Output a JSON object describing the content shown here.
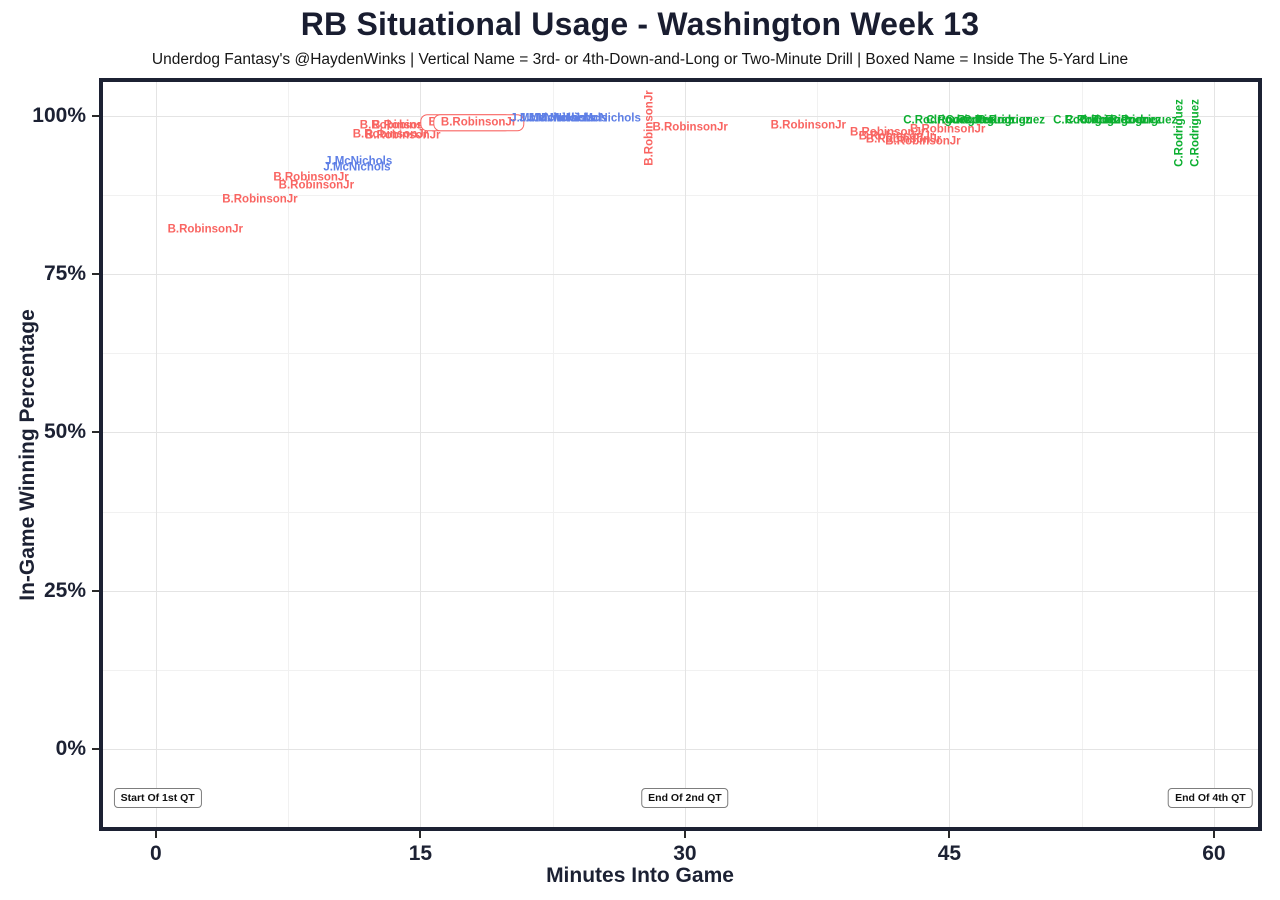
{
  "chart_data": {
    "type": "scatter",
    "title": "RB Situational Usage - Washington Week 13",
    "subtitle": "Underdog Fantasy's @HaydenWinks | Vertical Name = 3rd- or 4th-Down-and-Long or Two-Minute Drill | Boxed Name = Inside The 5-Yard Line",
    "xlabel": "Minutes Into Game",
    "ylabel": "In-Game Winning Percentage",
    "xlim": [
      -3.0,
      62.5
    ],
    "ylim": [
      -12.3,
      105.3
    ],
    "grid": "on",
    "legend_position": "none",
    "x_ticks": [
      {
        "value": 0,
        "label": "0"
      },
      {
        "value": 15,
        "label": "15"
      },
      {
        "value": 30,
        "label": "30"
      },
      {
        "value": 45,
        "label": "45"
      },
      {
        "value": 60,
        "label": "60"
      }
    ],
    "y_ticks": [
      {
        "value": 0,
        "label": "0%"
      },
      {
        "value": 25,
        "label": "25%"
      },
      {
        "value": 50,
        "label": "50%"
      },
      {
        "value": 75,
        "label": "75%"
      },
      {
        "value": 100,
        "label": "100%"
      }
    ],
    "x_minor": [
      7.5,
      22.5,
      37.5,
      52.5
    ],
    "y_minor": [
      12.5,
      37.5,
      62.5,
      87.5
    ],
    "colors": {
      "red": "#f96562",
      "blue": "#5e7fe6",
      "green": "#0caf30",
      "ink": "#1c2133",
      "grid_major": "#e4e4e4",
      "grid_minor": "#f1f1f1"
    },
    "points": [
      {
        "label": "B.RobinsonJr",
        "x": 2.8,
        "y": 82.0,
        "color": "red",
        "style": "plain"
      },
      {
        "label": "B.RobinsonJr",
        "x": 5.9,
        "y": 86.6,
        "color": "red",
        "style": "plain"
      },
      {
        "label": "B.RobinsonJr",
        "x": 8.8,
        "y": 90.2,
        "color": "red",
        "style": "plain"
      },
      {
        "label": "B.RobinsonJr",
        "x": 9.1,
        "y": 88.9,
        "color": "red",
        "style": "plain"
      },
      {
        "label": "B.RobinsonJr",
        "x": 13.3,
        "y": 96.9,
        "color": "red",
        "style": "plain"
      },
      {
        "label": "B.RobinsonJr",
        "x": 14.0,
        "y": 96.7,
        "color": "red",
        "style": "plain"
      },
      {
        "label": "B.RobinsonJr",
        "x": 13.7,
        "y": 98.4,
        "color": "red",
        "style": "plain"
      },
      {
        "label": "B.RobinsonJr",
        "x": 14.4,
        "y": 98.3,
        "color": "red",
        "style": "plain"
      },
      {
        "label": "B.RobinsonJr",
        "x": 17.6,
        "y": 98.9,
        "color": "red",
        "style": "boxed"
      },
      {
        "label": "B.RobinsonJr",
        "x": 18.3,
        "y": 98.9,
        "color": "red",
        "style": "boxed"
      },
      {
        "label": "J.McNichols",
        "x": 11.5,
        "y": 92.7,
        "color": "blue",
        "style": "plain"
      },
      {
        "label": "J.McNichols",
        "x": 11.4,
        "y": 91.7,
        "color": "blue",
        "style": "plain"
      },
      {
        "label": "J.McNichols",
        "x": 22.0,
        "y": 99.5,
        "color": "blue",
        "style": "plain"
      },
      {
        "label": "J.McNichols",
        "x": 22.5,
        "y": 99.5,
        "color": "blue",
        "style": "plain"
      },
      {
        "label": "J.McNichols",
        "x": 23.0,
        "y": 99.4,
        "color": "blue",
        "style": "plain"
      },
      {
        "label": "J.McNichols",
        "x": 23.7,
        "y": 99.5,
        "color": "blue",
        "style": "plain"
      },
      {
        "label": "J.McNichols",
        "x": 25.6,
        "y": 99.5,
        "color": "blue",
        "style": "plain"
      },
      {
        "label": "B.RobinsonJr",
        "x": 28.0,
        "y": 98.0,
        "color": "red",
        "style": "vertical"
      },
      {
        "label": "B.RobinsonJr",
        "x": 30.3,
        "y": 98.0,
        "color": "red",
        "style": "plain"
      },
      {
        "label": "B.RobinsonJr",
        "x": 37.0,
        "y": 98.3,
        "color": "red",
        "style": "plain"
      },
      {
        "label": "B.RobinsonJr",
        "x": 41.5,
        "y": 97.2,
        "color": "red",
        "style": "plain"
      },
      {
        "label": "B.RobinsonJr",
        "x": 42.0,
        "y": 96.6,
        "color": "red",
        "style": "plain"
      },
      {
        "label": "B.RobinsonJr",
        "x": 42.4,
        "y": 96.1,
        "color": "red",
        "style": "plain"
      },
      {
        "label": "B.RobinsonJr",
        "x": 43.5,
        "y": 95.8,
        "color": "red",
        "style": "plain"
      },
      {
        "label": "B.RobinsonJr",
        "x": 44.9,
        "y": 97.7,
        "color": "red",
        "style": "plain"
      },
      {
        "label": "C.Rodriguez",
        "x": 44.3,
        "y": 99.1,
        "color": "green",
        "style": "plain"
      },
      {
        "label": "C.Rodriguez",
        "x": 45.6,
        "y": 99.2,
        "color": "green",
        "style": "plain"
      },
      {
        "label": "C.Rodriguez",
        "x": 46.7,
        "y": 99.1,
        "color": "green",
        "style": "plain"
      },
      {
        "label": "C.Rodriguez",
        "x": 47.7,
        "y": 99.2,
        "color": "green",
        "style": "plain"
      },
      {
        "label": "C.Rodriguez",
        "x": 48.5,
        "y": 99.1,
        "color": "green",
        "style": "plain"
      },
      {
        "label": "C.Rodriguez",
        "x": 52.8,
        "y": 99.1,
        "color": "green",
        "style": "plain"
      },
      {
        "label": "C.Rodriguez",
        "x": 53.5,
        "y": 99.1,
        "color": "green",
        "style": "plain"
      },
      {
        "label": "C.Rodriguez",
        "x": 54.3,
        "y": 99.1,
        "color": "green",
        "style": "plain"
      },
      {
        "label": "C.Rodriguez",
        "x": 55.1,
        "y": 99.1,
        "color": "green",
        "style": "plain"
      },
      {
        "label": "C.Rodriguez",
        "x": 56.0,
        "y": 99.1,
        "color": "green",
        "style": "plain"
      },
      {
        "label": "C.Rodriguez",
        "x": 58.1,
        "y": 97.2,
        "color": "green",
        "style": "vertical"
      },
      {
        "label": "C.Rodriguez",
        "x": 59.0,
        "y": 97.2,
        "color": "green",
        "style": "vertical"
      }
    ],
    "annotations": [
      {
        "label": "Start Of 1st QT",
        "x": 0.1,
        "y": -7.7
      },
      {
        "label": "End Of 2nd QT",
        "x": 30.0,
        "y": -7.7
      },
      {
        "label": "End Of 4th QT",
        "x": 59.8,
        "y": -7.7
      }
    ]
  }
}
